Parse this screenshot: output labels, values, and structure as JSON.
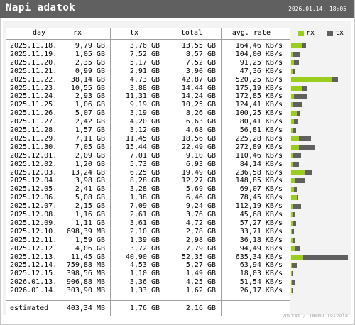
{
  "header": {
    "title": "Napi adatok",
    "datetime": "2026.01.14. 18:05"
  },
  "columns": {
    "day": "day",
    "rx": "rx",
    "tx": "tx",
    "total": "total",
    "avg": "avg. rate"
  },
  "legend": {
    "rx_label": "rx",
    "tx_label": "tx",
    "rx_color": "#9acd1e",
    "tx_color": "#606060"
  },
  "rows": [
    {
      "day": "2025.11.18.",
      "rx": "9,79 GB",
      "tx": "3,76 GB",
      "total": "13,55 GB",
      "avg": "164,46 KB/s",
      "rx_gb": 9.79,
      "tx_gb": 3.76
    },
    {
      "day": "2025.11.19.",
      "rx": "1,05 GB",
      "tx": "7,52 GB",
      "total": "8,57 GB",
      "avg": "104,00 KB/s",
      "rx_gb": 1.05,
      "tx_gb": 7.52
    },
    {
      "day": "2025.11.20.",
      "rx": "2,35 GB",
      "tx": "5,17 GB",
      "total": "7,52 GB",
      "avg": "91,25 KB/s",
      "rx_gb": 2.35,
      "tx_gb": 5.17
    },
    {
      "day": "2025.11.21.",
      "rx": "0,99 GB",
      "tx": "2,91 GB",
      "total": "3,90 GB",
      "avg": "47,36 KB/s",
      "rx_gb": 0.99,
      "tx_gb": 2.91
    },
    {
      "day": "2025.11.22.",
      "rx": "38,14 GB",
      "tx": "4,73 GB",
      "total": "42,87 GB",
      "avg": "520,25 KB/s",
      "rx_gb": 38.14,
      "tx_gb": 4.73
    },
    {
      "day": "2025.11.23.",
      "rx": "10,55 GB",
      "tx": "3,88 GB",
      "total": "14,44 GB",
      "avg": "175,19 KB/s",
      "rx_gb": 10.55,
      "tx_gb": 3.88
    },
    {
      "day": "2025.11.24.",
      "rx": "2,93 GB",
      "tx": "11,31 GB",
      "total": "14,24 GB",
      "avg": "172,85 KB/s",
      "rx_gb": 2.93,
      "tx_gb": 11.31
    },
    {
      "day": "2025.11.25.",
      "rx": "1,06 GB",
      "tx": "9,19 GB",
      "total": "10,25 GB",
      "avg": "124,41 KB/s",
      "rx_gb": 1.06,
      "tx_gb": 9.19
    },
    {
      "day": "2025.11.26.",
      "rx": "5,07 GB",
      "tx": "3,19 GB",
      "total": "8,26 GB",
      "avg": "100,25 KB/s",
      "rx_gb": 5.07,
      "tx_gb": 3.19
    },
    {
      "day": "2025.11.27.",
      "rx": "2,42 GB",
      "tx": "4,20 GB",
      "total": "6,63 GB",
      "avg": "80,41 KB/s",
      "rx_gb": 2.42,
      "tx_gb": 4.2
    },
    {
      "day": "2025.11.28.",
      "rx": "1,57 GB",
      "tx": "3,12 GB",
      "total": "4,68 GB",
      "avg": "56,81 KB/s",
      "rx_gb": 1.57,
      "tx_gb": 3.12
    },
    {
      "day": "2025.11.29.",
      "rx": "7,11 GB",
      "tx": "11,45 GB",
      "total": "18,56 GB",
      "avg": "225,28 KB/s",
      "rx_gb": 7.11,
      "tx_gb": 11.45
    },
    {
      "day": "2025.11.30.",
      "rx": "7,05 GB",
      "tx": "15,44 GB",
      "total": "22,49 GB",
      "avg": "272,89 KB/s",
      "rx_gb": 7.05,
      "tx_gb": 15.44
    },
    {
      "day": "2025.12.01.",
      "rx": "2,09 GB",
      "tx": "7,01 GB",
      "total": "9,10 GB",
      "avg": "110,46 KB/s",
      "rx_gb": 2.09,
      "tx_gb": 7.01
    },
    {
      "day": "2025.12.02.",
      "rx": "1,20 GB",
      "tx": "5,73 GB",
      "total": "6,93 GB",
      "avg": "84,14 KB/s",
      "rx_gb": 1.2,
      "tx_gb": 5.73
    },
    {
      "day": "2025.12.03.",
      "rx": "13,24 GB",
      "tx": "6,25 GB",
      "total": "19,49 GB",
      "avg": "236,58 KB/s",
      "rx_gb": 13.24,
      "tx_gb": 6.25
    },
    {
      "day": "2025.12.04.",
      "rx": "3,98 GB",
      "tx": "8,28 GB",
      "total": "12,27 GB",
      "avg": "148,85 KB/s",
      "rx_gb": 3.98,
      "tx_gb": 8.28
    },
    {
      "day": "2025.12.05.",
      "rx": "2,41 GB",
      "tx": "3,28 GB",
      "total": "5,69 GB",
      "avg": "69,07 KB/s",
      "rx_gb": 2.41,
      "tx_gb": 3.28
    },
    {
      "day": "2025.12.06.",
      "rx": "5,08 GB",
      "tx": "1,38 GB",
      "total": "6,46 GB",
      "avg": "78,45 KB/s",
      "rx_gb": 5.08,
      "tx_gb": 1.38
    },
    {
      "day": "2025.12.07.",
      "rx": "2,15 GB",
      "tx": "7,09 GB",
      "total": "9,24 GB",
      "avg": "112,19 KB/s",
      "rx_gb": 2.15,
      "tx_gb": 7.09
    },
    {
      "day": "2025.12.08.",
      "rx": "1,16 GB",
      "tx": "2,61 GB",
      "total": "3,76 GB",
      "avg": "45,68 KB/s",
      "rx_gb": 1.16,
      "tx_gb": 2.61
    },
    {
      "day": "2025.12.09.",
      "rx": "1,11 GB",
      "tx": "3,61 GB",
      "total": "4,72 GB",
      "avg": "57,27 KB/s",
      "rx_gb": 1.11,
      "tx_gb": 3.61
    },
    {
      "day": "2025.12.10.",
      "rx": "698,39 MB",
      "tx": "2,10 GB",
      "total": "2,78 GB",
      "avg": "33,71 KB/s",
      "rx_gb": 0.68,
      "tx_gb": 2.1
    },
    {
      "day": "2025.12.11.",
      "rx": "1,59 GB",
      "tx": "1,39 GB",
      "total": "2,98 GB",
      "avg": "36,18 KB/s",
      "rx_gb": 1.59,
      "tx_gb": 1.39
    },
    {
      "day": "2025.12.12.",
      "rx": "4,06 GB",
      "tx": "3,72 GB",
      "total": "7,79 GB",
      "avg": "94,49 KB/s",
      "rx_gb": 4.06,
      "tx_gb": 3.72
    },
    {
      "day": "2025.12.13.",
      "rx": "11,45 GB",
      "tx": "40,90 GB",
      "total": "52,35 GB",
      "avg": "635,34 KB/s",
      "rx_gb": 11.45,
      "tx_gb": 40.9
    },
    {
      "day": "2025.12.14.",
      "rx": "759,88 MB",
      "tx": "4,53 GB",
      "total": "5,27 GB",
      "avg": "63,94 KB/s",
      "rx_gb": 0.74,
      "tx_gb": 4.53
    },
    {
      "day": "2025.12.15.",
      "rx": "398,56 MB",
      "tx": "1,10 GB",
      "total": "1,49 GB",
      "avg": "18,03 KB/s",
      "rx_gb": 0.39,
      "tx_gb": 1.1
    },
    {
      "day": "2026.01.13.",
      "rx": "906,88 MB",
      "tx": "3,36 GB",
      "total": "4,25 GB",
      "avg": "51,54 KB/s",
      "rx_gb": 0.89,
      "tx_gb": 3.36
    },
    {
      "day": "2026.01.14.",
      "rx": "303,90 MB",
      "tx": "1,33 GB",
      "total": "1,62 GB",
      "avg": "26,17 KB/s",
      "rx_gb": 0.3,
      "tx_gb": 1.33
    }
  ],
  "estimated": {
    "label": "estimated",
    "rx": "403,34 MB",
    "tx": "1,76 GB",
    "total": "2,16 GB"
  },
  "footer": {
    "credit": "vnStat / Teemu Toivola"
  },
  "bar_scale_max_gb": 52.35
}
